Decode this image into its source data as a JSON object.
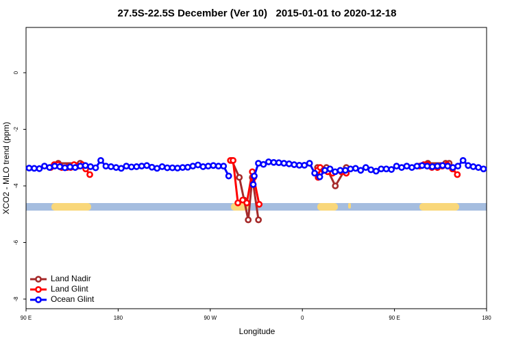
{
  "chart_data": {
    "type": "line",
    "title": "27.5S-22.5S December (Ver 10)   2015-01-01 to 2020-12-18",
    "x_label": "Longitude",
    "y_label": "XCO2 - MLO trend (ppm)",
    "xlim": [
      90,
      540
    ],
    "ylim": [
      -8.34,
      1.6
    ],
    "xticks": [
      {
        "value": 90,
        "label": "90 E"
      },
      180,
      {
        "value": 270,
        "label": "90 W"
      },
      {
        "value": 360,
        "label": "0"
      },
      {
        "value": 450,
        "label": "90 E"
      },
      {
        "value": 540,
        "label": "180"
      }
    ],
    "yticks": [
      0,
      -2,
      -4,
      -6,
      -8
    ],
    "legend": "bottom-left",
    "series": [
      {
        "name": "Land Nadir",
        "color": "#a52a2a",
        "x": [
          121.5,
          142.9,
          null,
          291,
          298.4,
          303.1,
          307.1,
          311.1,
          317.1,
          null,
          374.8,
          383.5,
          392.2,
          402.9,
          null,
          482.6,
          500,
          503.4
        ],
        "values": [
          -3.2,
          -3.2,
          null,
          -3.1,
          -3.7,
          -4.5,
          -5.2,
          -3.7,
          -5.2,
          null,
          -3.35,
          -3.35,
          -4.0,
          -3.35,
          null,
          -3.2,
          -3.2,
          -3.2
        ]
      },
      {
        "name": "Land Glint",
        "color": "#ff0000",
        "x": [
          114.1,
          117.5,
          121.5,
          124.8,
          130.2,
          133.6,
          136.9,
          140.9,
          144.9,
          148.3,
          152.3,
          null,
          289.7,
          292.3,
          297,
          301.7,
          305.7,
          311.1,
          312.4,
          317.8,
          null,
          374.8,
          375.4,
          377.4,
          380.8,
          384.8,
          389.5,
          398.2,
          402.9,
          null,
          474.6,
          478.6,
          482.6,
          486.6,
          492,
          496.7,
          501.4,
          506.7,
          511.4
        ],
        "values": [
          -3.35,
          -3.25,
          -3.25,
          -3.35,
          -3.35,
          -3.35,
          -3.25,
          -3.3,
          -3.25,
          -3.4,
          -3.6,
          null,
          -3.1,
          -3.1,
          -4.6,
          -4.5,
          -4.6,
          -3.5,
          -3.7,
          -4.65,
          null,
          -3.45,
          -3.7,
          -3.35,
          -3.45,
          -3.5,
          -3.55,
          -3.5,
          -3.55,
          null,
          -3.3,
          -3.25,
          -3.25,
          -3.35,
          -3.35,
          -3.3,
          -3.25,
          -3.4,
          -3.6
        ]
      },
      {
        "name": "Ocean Glint",
        "color": "#0000ff",
        "x": [
          93,
          98,
          103,
          108,
          113,
          118,
          123,
          128,
          133,
          138,
          143,
          148,
          153,
          158,
          163,
          168,
          173,
          178,
          183,
          188,
          193,
          198,
          203,
          208,
          213,
          218,
          223,
          228,
          233,
          238,
          243,
          248,
          253,
          258,
          263,
          268,
          273,
          278,
          283,
          288,
          null,
          312,
          313,
          317,
          322,
          327,
          332,
          337,
          342,
          347,
          352,
          357,
          362,
          367,
          372,
          377,
          382,
          387,
          392,
          397,
          402,
          407,
          412,
          417,
          422,
          427,
          432,
          437,
          442,
          447,
          452,
          457,
          462,
          467,
          472,
          477,
          482,
          487,
          492,
          497,
          502,
          507,
          512,
          517,
          522,
          527,
          532,
          537
        ],
        "values": [
          -3.37,
          -3.38,
          -3.39,
          -3.3,
          -3.35,
          -3.3,
          -3.32,
          -3.36,
          -3.33,
          -3.35,
          -3.3,
          -3.28,
          -3.32,
          -3.36,
          -3.1,
          -3.3,
          -3.32,
          -3.35,
          -3.38,
          -3.3,
          -3.33,
          -3.32,
          -3.3,
          -3.28,
          -3.34,
          -3.38,
          -3.32,
          -3.36,
          -3.36,
          -3.37,
          -3.35,
          -3.34,
          -3.3,
          -3.26,
          -3.32,
          -3.3,
          -3.28,
          -3.3,
          -3.3,
          -3.65,
          null,
          -3.95,
          -3.65,
          -3.2,
          -3.24,
          -3.15,
          -3.17,
          -3.18,
          -3.2,
          -3.22,
          -3.25,
          -3.27,
          -3.27,
          -3.2,
          -3.55,
          -3.68,
          -3.45,
          -3.4,
          -3.5,
          -3.45,
          -3.45,
          -3.4,
          -3.38,
          -3.45,
          -3.35,
          -3.43,
          -3.48,
          -3.4,
          -3.4,
          -3.42,
          -3.3,
          -3.35,
          -3.3,
          -3.35,
          -3.3,
          -3.28,
          -3.3,
          -3.32,
          -3.3,
          -3.28,
          -3.3,
          -3.35,
          -3.3,
          -3.1,
          -3.28,
          -3.32,
          -3.35,
          -3.4
        ]
      }
    ]
  }
}
